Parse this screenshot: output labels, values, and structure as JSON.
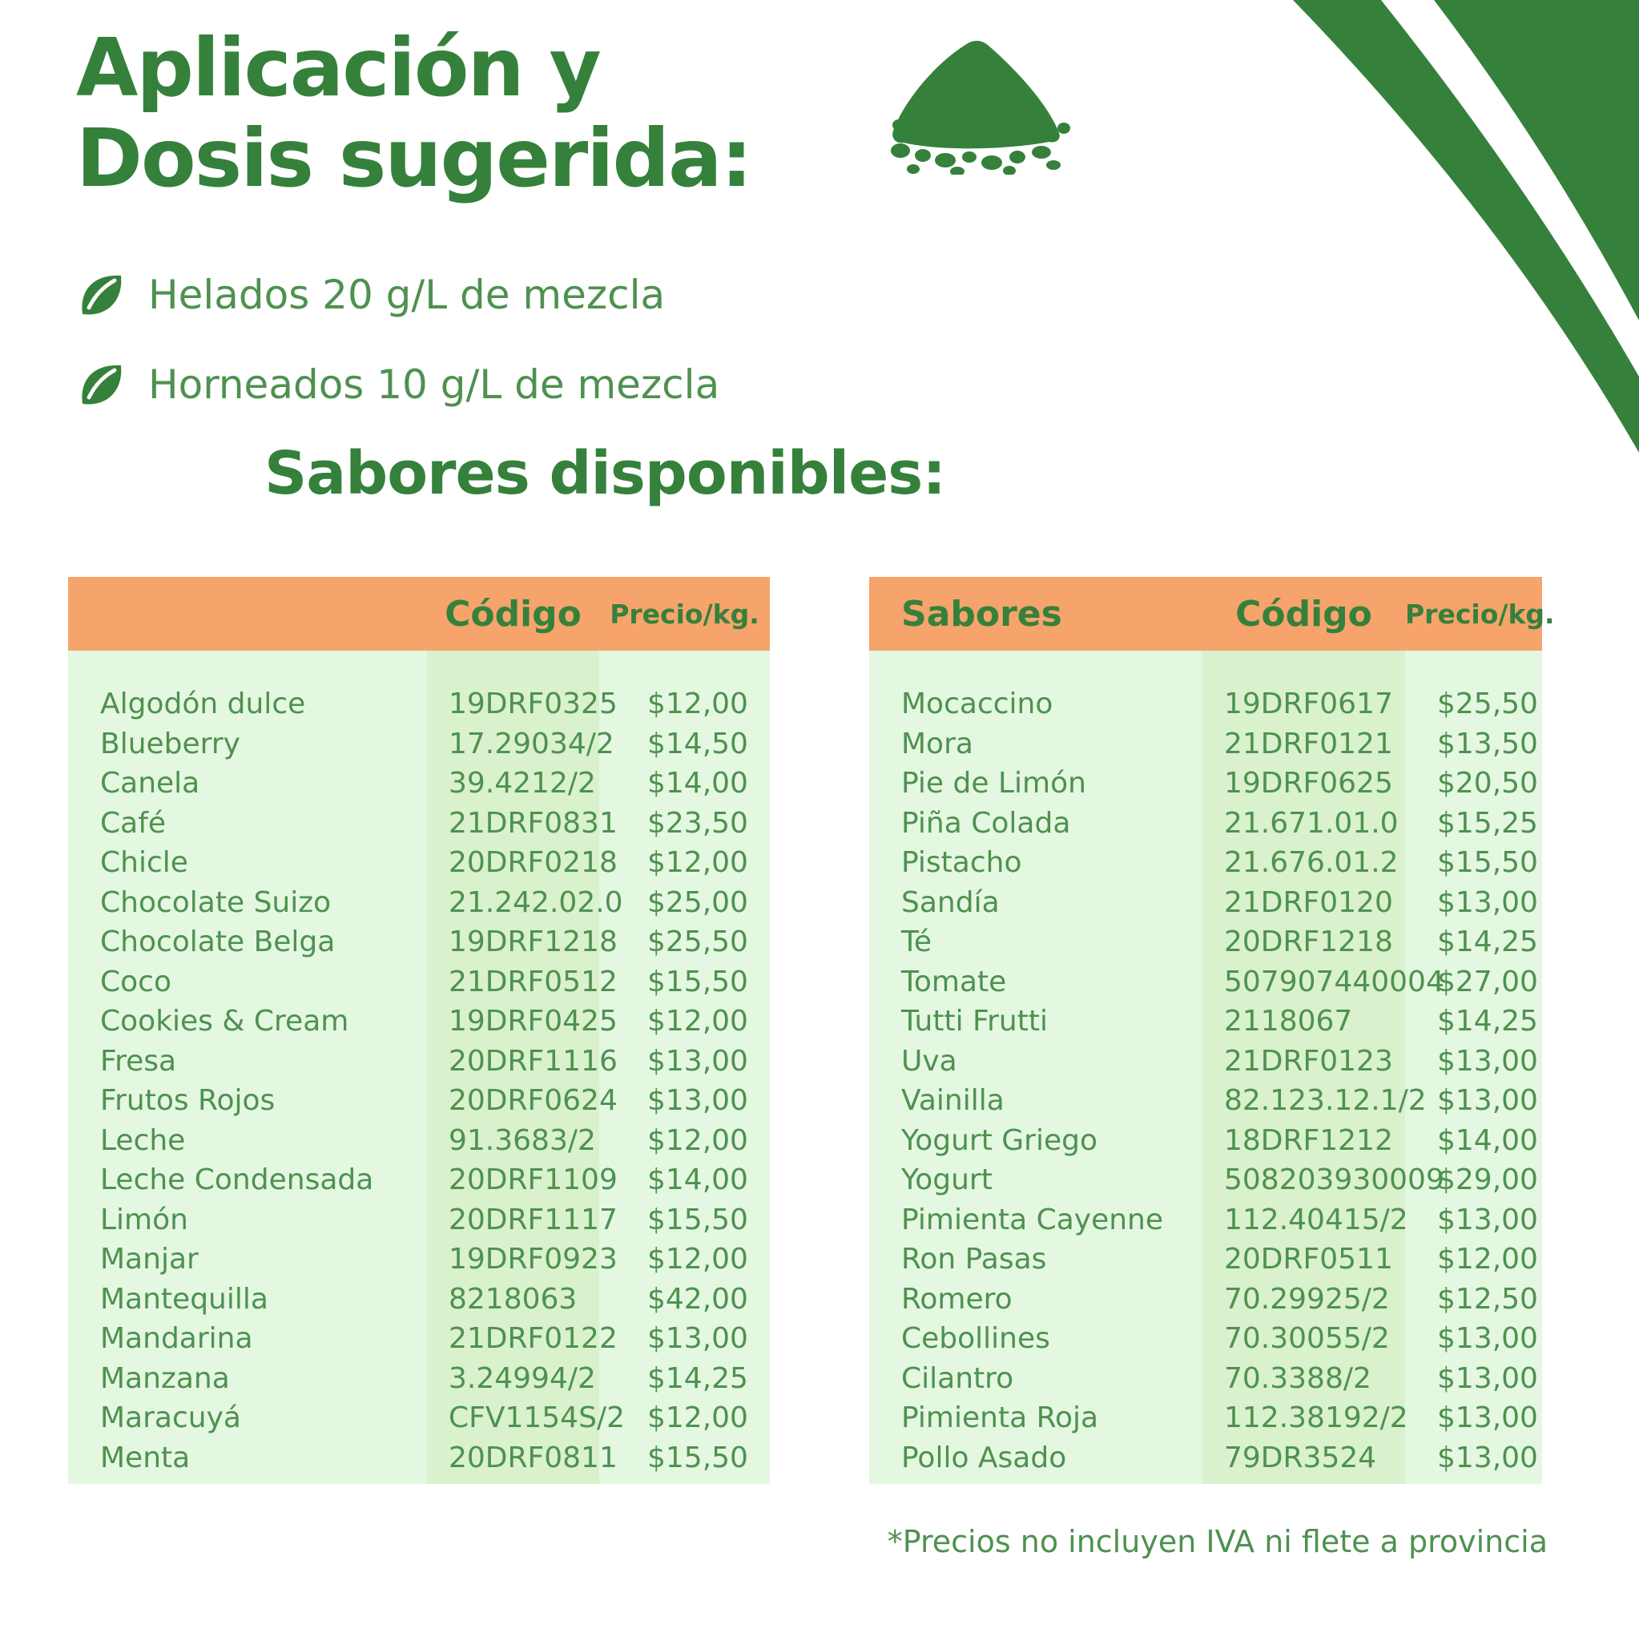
{
  "colors": {
    "green_dark": "#35813B",
    "green_text": "#4E9150",
    "orange_header": "#F7A36C",
    "table_bg_light": "#E4F7E0",
    "table_code_band": "#D9F1CC"
  },
  "header": {
    "title_line1": "Aplicación y",
    "title_line2": "Dosis sugerida:"
  },
  "dosage_bullets": [
    {
      "icon": "leaf-icon",
      "text": "Helados 20 g/L de mezcla"
    },
    {
      "icon": "leaf-icon",
      "text": "Horneados 10 g/L de mezcla"
    }
  ],
  "section_title": "Sabores disponibles:",
  "tables": {
    "left": {
      "headers": {
        "flavor": "",
        "code": "Código",
        "price": "Precio/kg."
      },
      "rows": [
        {
          "flavor": "Algodón dulce",
          "code": "19DRF0325",
          "price": "$12,00"
        },
        {
          "flavor": "Blueberry",
          "code": "17.29034/2",
          "price": "$14,50"
        },
        {
          "flavor": "Canela",
          "code": "39.4212/2",
          "price": "$14,00"
        },
        {
          "flavor": "Café",
          "code": "21DRF0831",
          "price": "$23,50"
        },
        {
          "flavor": "Chicle",
          "code": "20DRF0218",
          "price": "$12,00"
        },
        {
          "flavor": "Chocolate Suizo",
          "code": "21.242.02.0",
          "price": "$25,00"
        },
        {
          "flavor": "Chocolate Belga",
          "code": "19DRF1218",
          "price": "$25,50"
        },
        {
          "flavor": "Coco",
          "code": "21DRF0512",
          "price": "$15,50"
        },
        {
          "flavor": "Cookies & Cream",
          "code": "19DRF0425",
          "price": "$12,00"
        },
        {
          "flavor": "Fresa",
          "code": "20DRF1116",
          "price": "$13,00"
        },
        {
          "flavor": "Frutos Rojos",
          "code": "20DRF0624",
          "price": "$13,00"
        },
        {
          "flavor": "Leche",
          "code": "91.3683/2",
          "price": "$12,00"
        },
        {
          "flavor": "Leche Condensada",
          "code": "20DRF1109",
          "price": "$14,00"
        },
        {
          "flavor": "Limón",
          "code": "20DRF1117",
          "price": "$15,50"
        },
        {
          "flavor": "Manjar",
          "code": "19DRF0923",
          "price": "$12,00"
        },
        {
          "flavor": "Mantequilla",
          "code": "8218063",
          "price": "$42,00"
        },
        {
          "flavor": "Mandarina",
          "code": "21DRF0122",
          "price": "$13,00"
        },
        {
          "flavor": "Manzana",
          "code": "3.24994/2",
          "price": "$14,25"
        },
        {
          "flavor": "Maracuyá",
          "code": "CFV1154S/2",
          "price": "$12,00"
        },
        {
          "flavor": "Menta",
          "code": "20DRF0811",
          "price": "$15,50"
        }
      ]
    },
    "right": {
      "headers": {
        "flavor": "Sabores",
        "code": "Código",
        "price": "Precio/kg."
      },
      "rows": [
        {
          "flavor": "Mocaccino",
          "code": "19DRF0617",
          "price": "$25,50"
        },
        {
          "flavor": "Mora",
          "code": "21DRF0121",
          "price": "$13,50"
        },
        {
          "flavor": "Pie de Limón",
          "code": "19DRF0625",
          "price": "$20,50"
        },
        {
          "flavor": "Piña Colada",
          "code": "21.671.01.0",
          "price": "$15,25"
        },
        {
          "flavor": "Pistacho",
          "code": "21.676.01.2",
          "price": "$15,50"
        },
        {
          "flavor": "Sandía",
          "code": "21DRF0120",
          "price": "$13,00"
        },
        {
          "flavor": "Té",
          "code": "20DRF1218",
          "price": "$14,25"
        },
        {
          "flavor": "Tomate",
          "code": "507907440004",
          "price": "$27,00"
        },
        {
          "flavor": "Tutti Frutti",
          "code": "2118067",
          "price": "$14,25"
        },
        {
          "flavor": "Uva",
          "code": "21DRF0123",
          "price": "$13,00"
        },
        {
          "flavor": "Vainilla",
          "code": "82.123.12.1/2",
          "price": "$13,00"
        },
        {
          "flavor": "Yogurt Griego",
          "code": "18DRF1212",
          "price": "$14,00"
        },
        {
          "flavor": "Yogurt",
          "code": "508203930009",
          "price": "$29,00"
        },
        {
          "flavor": "Pimienta Cayenne",
          "code": "112.40415/2",
          "price": "$13,00"
        },
        {
          "flavor": "Ron Pasas",
          "code": "20DRF0511",
          "price": "$12,00"
        },
        {
          "flavor": "Romero",
          "code": "70.29925/2",
          "price": "$12,50"
        },
        {
          "flavor": "Cebollines",
          "code": "70.30055/2",
          "price": "$13,00"
        },
        {
          "flavor": "Cilantro",
          "code": "70.3388/2",
          "price": "$13,00"
        },
        {
          "flavor": "Pimienta Roja",
          "code": "112.38192/2",
          "price": "$13,00"
        },
        {
          "flavor": "Pollo Asado",
          "code": "79DR3524",
          "price": "$13,00"
        }
      ]
    }
  },
  "footnote": "*Precios no incluyen IVA ni flete a provincia"
}
